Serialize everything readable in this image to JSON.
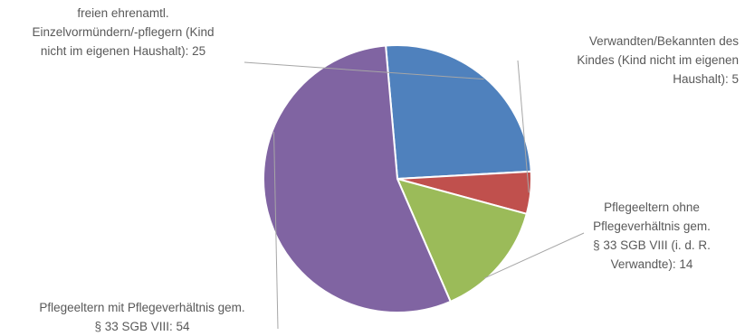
{
  "chart_data": {
    "type": "pie",
    "slices": [
      {
        "label": "freien ehrenamtl. Einzelvormündern/-pflegern (Kind nicht im eigenen Haushalt)",
        "value": 25,
        "color": "#4f81bd",
        "lines": [
          "freien ehrenamtl.",
          "Einzelvormündern/-pflegern (Kind",
          "nicht im eigenen Haushalt): 25"
        ]
      },
      {
        "label": "Verwandten/Bekannten des Kindes (Kind nicht im eigenen Haushalt)",
        "value": 5,
        "color": "#c0504d",
        "lines": [
          "Verwandten/Bekannten des",
          "Kindes (Kind nicht im eigenen",
          "Haushalt): 5"
        ]
      },
      {
        "label": "Pflegeeltern ohne Pflegeverhältnis gem. § 33 SGB VIII (i. d. R. Verwandte)",
        "value": 14,
        "color": "#9bbb59",
        "lines": [
          "Pflegeeltern ohne",
          "Pflegeverhältnis gem.",
          "§ 33 SGB VIII (i. d. R.",
          "Verwandte): 14"
        ]
      },
      {
        "label": "Pflegeeltern mit Pflegeverhältnis gem. § 33 SGB VIII",
        "value": 54,
        "color": "#8064a2",
        "lines": [
          "Pflegeeltern mit Pflegeverhältnis gem.",
          "§ 33 SGB VIII: 54"
        ]
      }
    ]
  }
}
